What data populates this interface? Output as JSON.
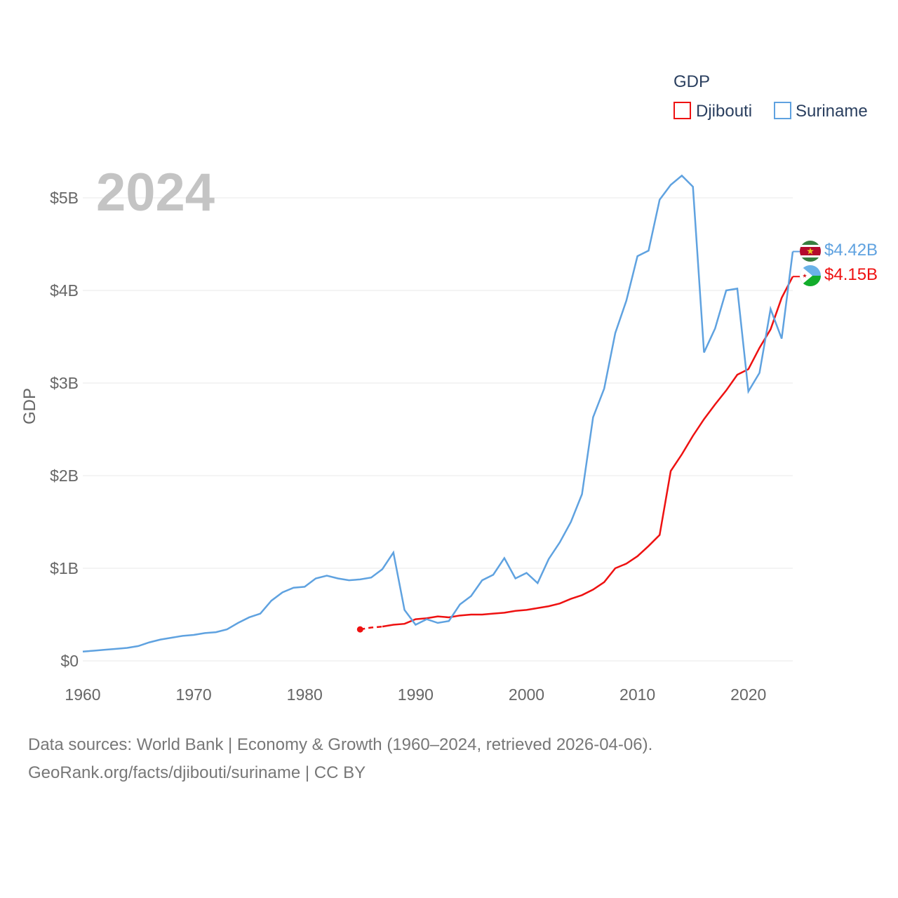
{
  "chart_data": {
    "type": "line",
    "ylabel": "GDP",
    "legend_title": "GDP",
    "year_label": "2024",
    "xlim": [
      1960,
      2024
    ],
    "ylim": [
      0,
      5.2
    ],
    "x_ticks": [
      1960,
      1970,
      1980,
      1990,
      2000,
      2010,
      2020
    ],
    "x_tick_labels": [
      "1960",
      "1970",
      "1980",
      "1990",
      "2000",
      "2010",
      "2020"
    ],
    "y_ticks": [
      0,
      1,
      2,
      3,
      4,
      5
    ],
    "y_tick_labels": [
      "$0",
      "$1B",
      "$2B",
      "$3B",
      "$4B",
      "$5B"
    ],
    "series": [
      {
        "name": "Djibouti",
        "color": "#ee1111",
        "end_label": "$4.15B",
        "flag": "djibouti-flag",
        "dashed_until": 1987,
        "x": [
          1985,
          1986,
          1987,
          1988,
          1989,
          1990,
          1991,
          1992,
          1993,
          1994,
          1995,
          1996,
          1997,
          1998,
          1999,
          2000,
          2001,
          2002,
          2003,
          2004,
          2005,
          2006,
          2007,
          2008,
          2009,
          2010,
          2011,
          2012,
          2013,
          2014,
          2015,
          2016,
          2017,
          2018,
          2019,
          2020,
          2021,
          2022,
          2023,
          2024
        ],
        "values": [
          0.34,
          0.36,
          0.37,
          0.39,
          0.4,
          0.45,
          0.46,
          0.48,
          0.47,
          0.49,
          0.5,
          0.5,
          0.51,
          0.52,
          0.54,
          0.55,
          0.57,
          0.59,
          0.62,
          0.67,
          0.71,
          0.77,
          0.85,
          1.0,
          1.05,
          1.13,
          1.24,
          1.36,
          2.05,
          2.23,
          2.43,
          2.61,
          2.77,
          2.92,
          3.09,
          3.15,
          3.38,
          3.58,
          3.92,
          4.15
        ]
      },
      {
        "name": "Suriname",
        "color": "#5fa2e0",
        "end_label": "$4.42B",
        "flag": "suriname-flag",
        "x": [
          1960,
          1961,
          1962,
          1963,
          1964,
          1965,
          1966,
          1967,
          1968,
          1969,
          1970,
          1971,
          1972,
          1973,
          1974,
          1975,
          1976,
          1977,
          1978,
          1979,
          1980,
          1981,
          1982,
          1983,
          1984,
          1985,
          1986,
          1987,
          1988,
          1989,
          1990,
          1991,
          1992,
          1993,
          1994,
          1995,
          1996,
          1997,
          1998,
          1999,
          2000,
          2001,
          2002,
          2003,
          2004,
          2005,
          2006,
          2007,
          2008,
          2009,
          2010,
          2011,
          2012,
          2013,
          2014,
          2015,
          2016,
          2017,
          2018,
          2019,
          2020,
          2021,
          2022,
          2023,
          2024
        ],
        "values": [
          0.1,
          0.11,
          0.12,
          0.13,
          0.14,
          0.16,
          0.2,
          0.23,
          0.25,
          0.27,
          0.28,
          0.3,
          0.31,
          0.34,
          0.41,
          0.47,
          0.51,
          0.65,
          0.74,
          0.79,
          0.8,
          0.89,
          0.92,
          0.89,
          0.87,
          0.88,
          0.9,
          0.99,
          1.17,
          0.55,
          0.39,
          0.45,
          0.41,
          0.43,
          0.61,
          0.7,
          0.87,
          0.93,
          1.11,
          0.89,
          0.95,
          0.84,
          1.1,
          1.28,
          1.5,
          1.8,
          2.63,
          2.94,
          3.54,
          3.89,
          4.37,
          4.43,
          4.98,
          5.14,
          5.24,
          5.12,
          3.33,
          3.59,
          4.0,
          4.02,
          2.91,
          3.11,
          3.8,
          3.48,
          4.42
        ]
      }
    ]
  },
  "source": {
    "line1": "Data sources: World Bank | Economy & Growth (1960–2024, retrieved 2026-04-06).",
    "line2": "GeoRank.org/facts/djibouti/suriname | CC BY"
  }
}
